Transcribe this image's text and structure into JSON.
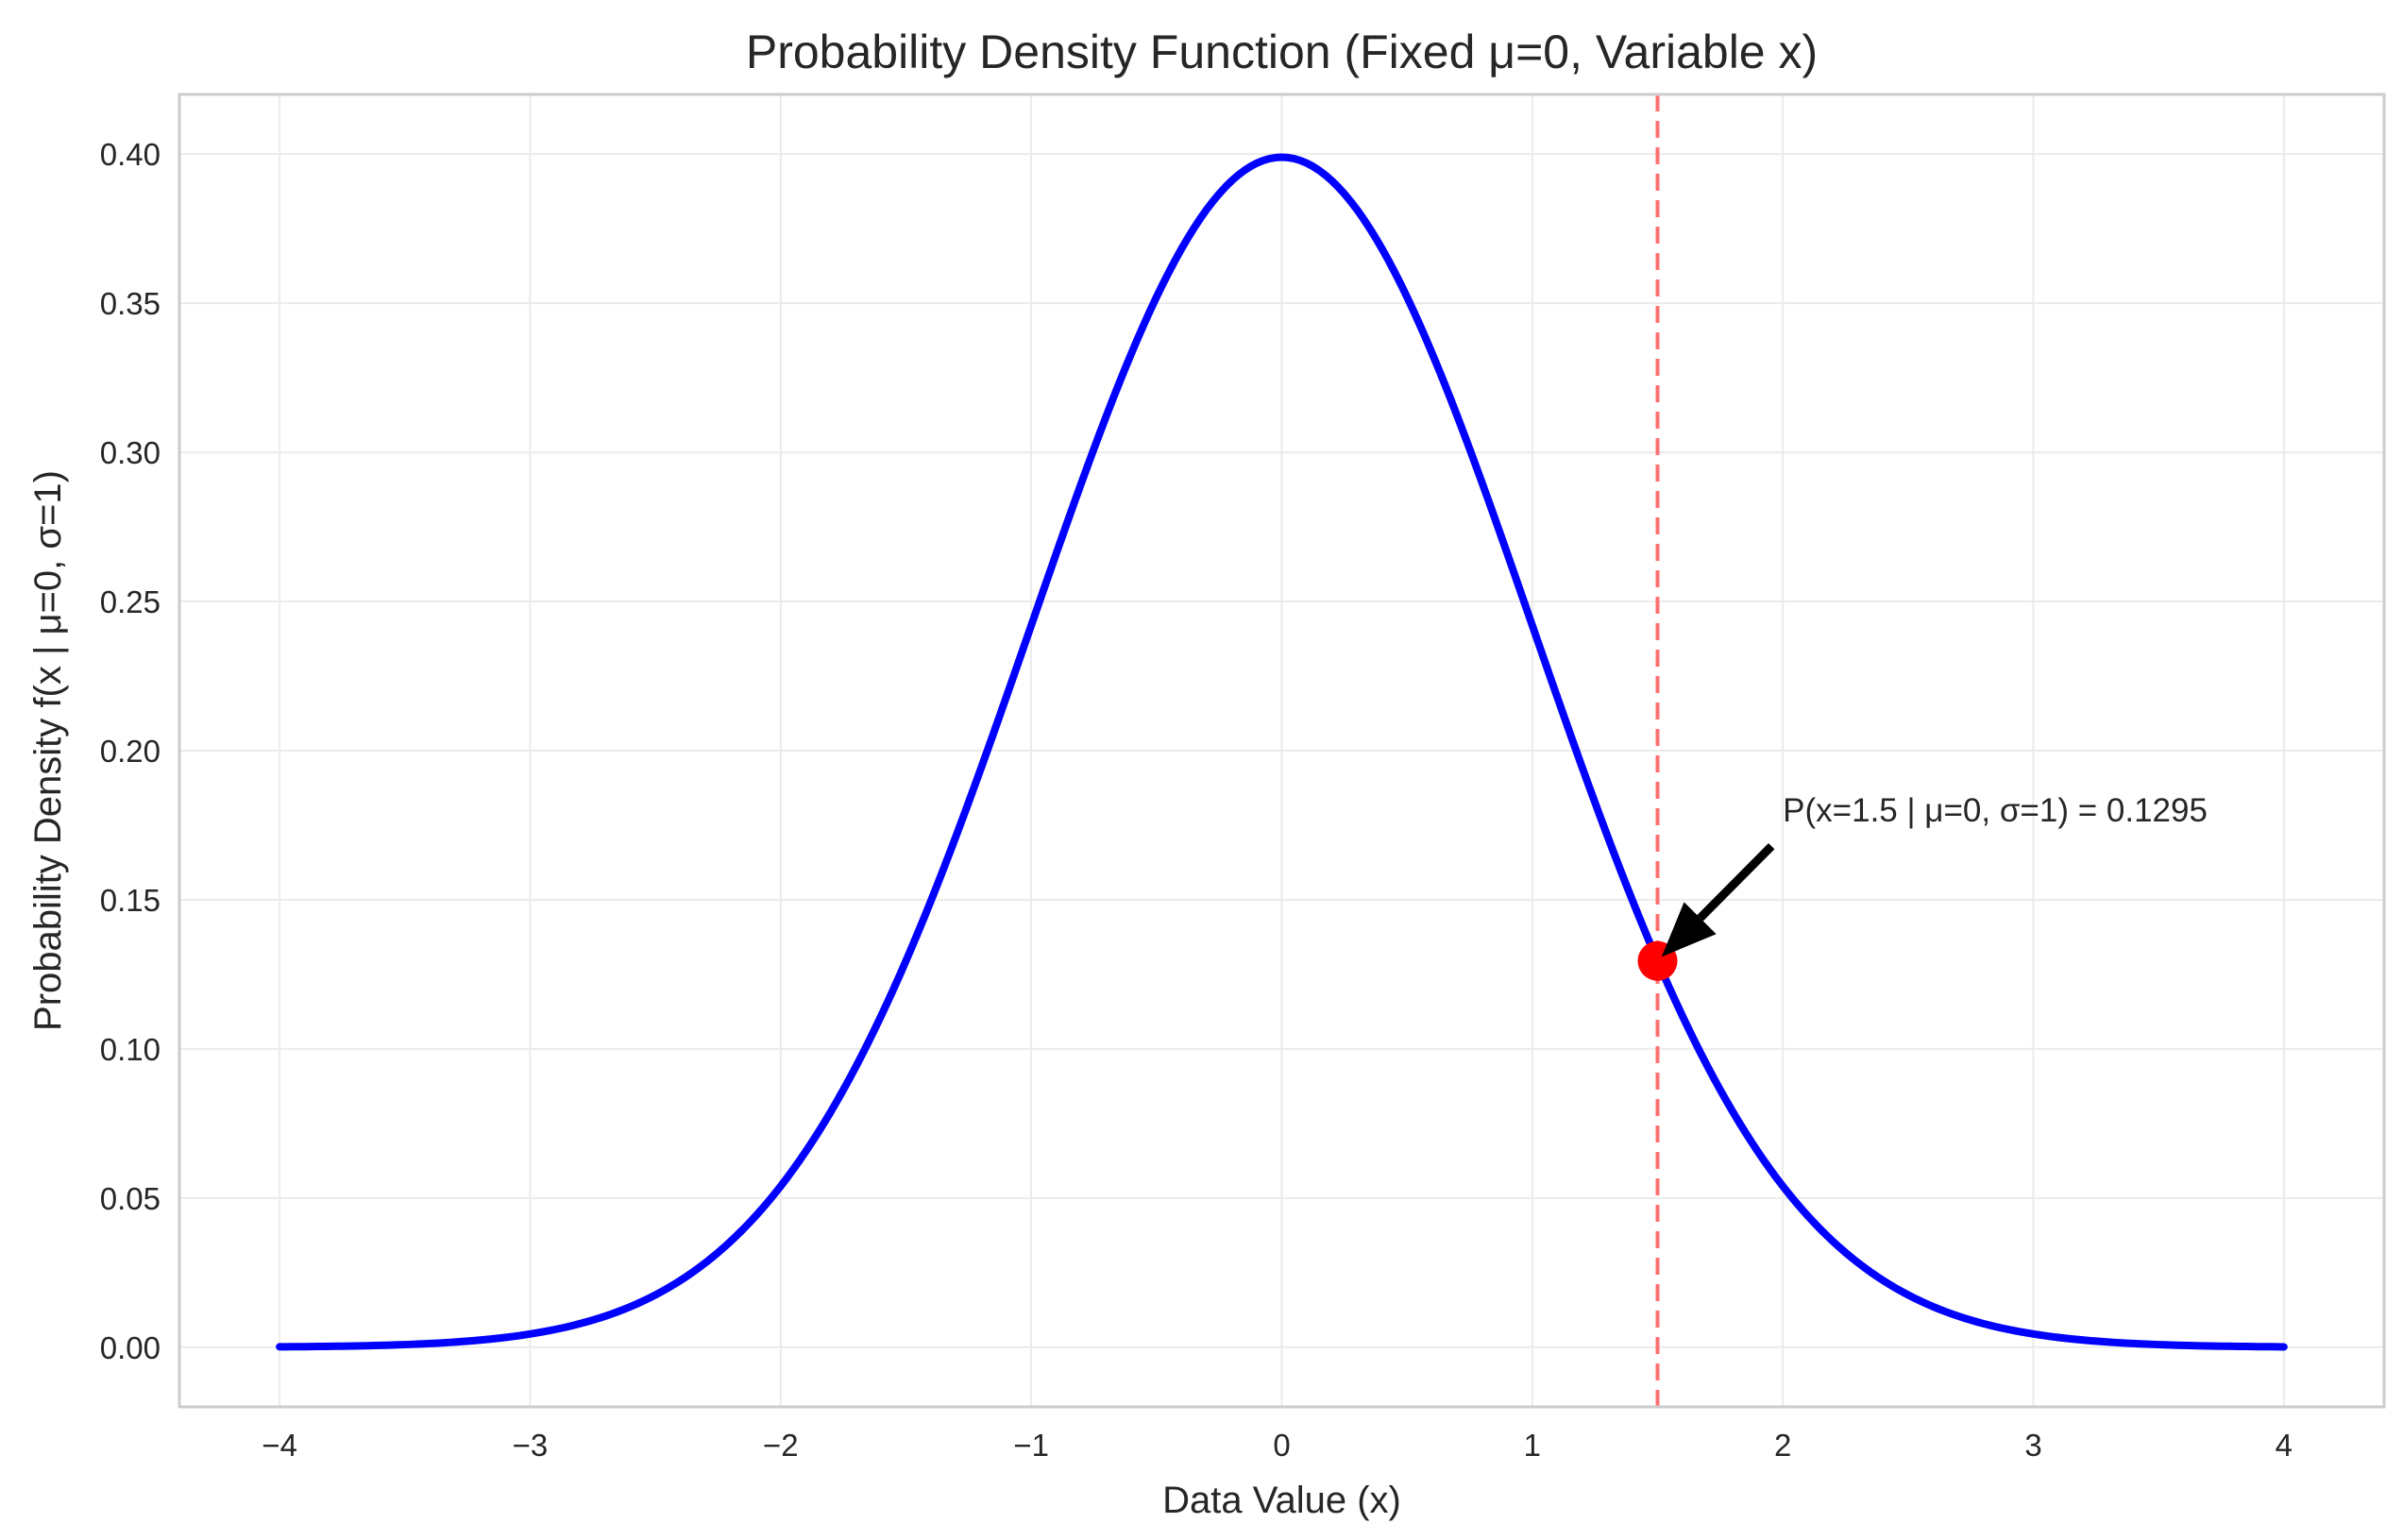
{
  "chart_data": {
    "type": "line",
    "title": "Probability Density Function (Fixed μ=0, Variable x)",
    "xlabel": "Data Value (x)",
    "ylabel": "Probability Density f(x | μ=0, σ=1)",
    "xlim": [
      -4.4,
      4.4
    ],
    "ylim": [
      -0.02,
      0.42
    ],
    "grid": true,
    "x_ticks": [
      -4,
      -3,
      -2,
      -1,
      0,
      1,
      2,
      3,
      4
    ],
    "x_tick_labels": [
      "−4",
      "−3",
      "−2",
      "−1",
      "0",
      "1",
      "2",
      "3",
      "4"
    ],
    "y_ticks": [
      0.0,
      0.05,
      0.1,
      0.15,
      0.2,
      0.25,
      0.3,
      0.35,
      0.4
    ],
    "y_tick_labels": [
      "0.00",
      "0.05",
      "0.10",
      "0.15",
      "0.20",
      "0.25",
      "0.30",
      "0.35",
      "0.40"
    ],
    "series": [
      {
        "color": "#0000ff",
        "x": [
          -4.0,
          -3.75,
          -3.5,
          -3.25,
          -3.0,
          -2.75,
          -2.5,
          -2.25,
          -2.0,
          -1.75,
          -1.5,
          -1.25,
          -1.0,
          -0.75,
          -0.5,
          -0.25,
          0.0,
          0.25,
          0.5,
          0.75,
          1.0,
          1.25,
          1.5,
          1.75,
          2.0,
          2.25,
          2.5,
          2.75,
          3.0,
          3.25,
          3.5,
          3.75,
          4.0
        ],
        "y": [
          0.0001,
          0.0004,
          0.0009,
          0.002,
          0.0044,
          0.0091,
          0.0175,
          0.0317,
          0.054,
          0.0863,
          0.1295,
          0.1826,
          0.242,
          0.3011,
          0.3521,
          0.3867,
          0.3989,
          0.3867,
          0.3521,
          0.3011,
          0.242,
          0.1826,
          0.1295,
          0.0863,
          0.054,
          0.0317,
          0.0175,
          0.0091,
          0.0044,
          0.002,
          0.0009,
          0.0004,
          0.0001
        ]
      }
    ],
    "highlight_point": {
      "x": 1.5,
      "y": 0.1295,
      "color": "#ff0000"
    },
    "vline": {
      "x": 1.5,
      "color": "#ff7070",
      "style": "dashed"
    },
    "annotation": {
      "text": "P(x=1.5 | μ=0, σ=1) = 0.1295",
      "text_x": 2.0,
      "text_y": 0.18,
      "arrow_to_x": 1.5,
      "arrow_to_y": 0.1295
    }
  }
}
